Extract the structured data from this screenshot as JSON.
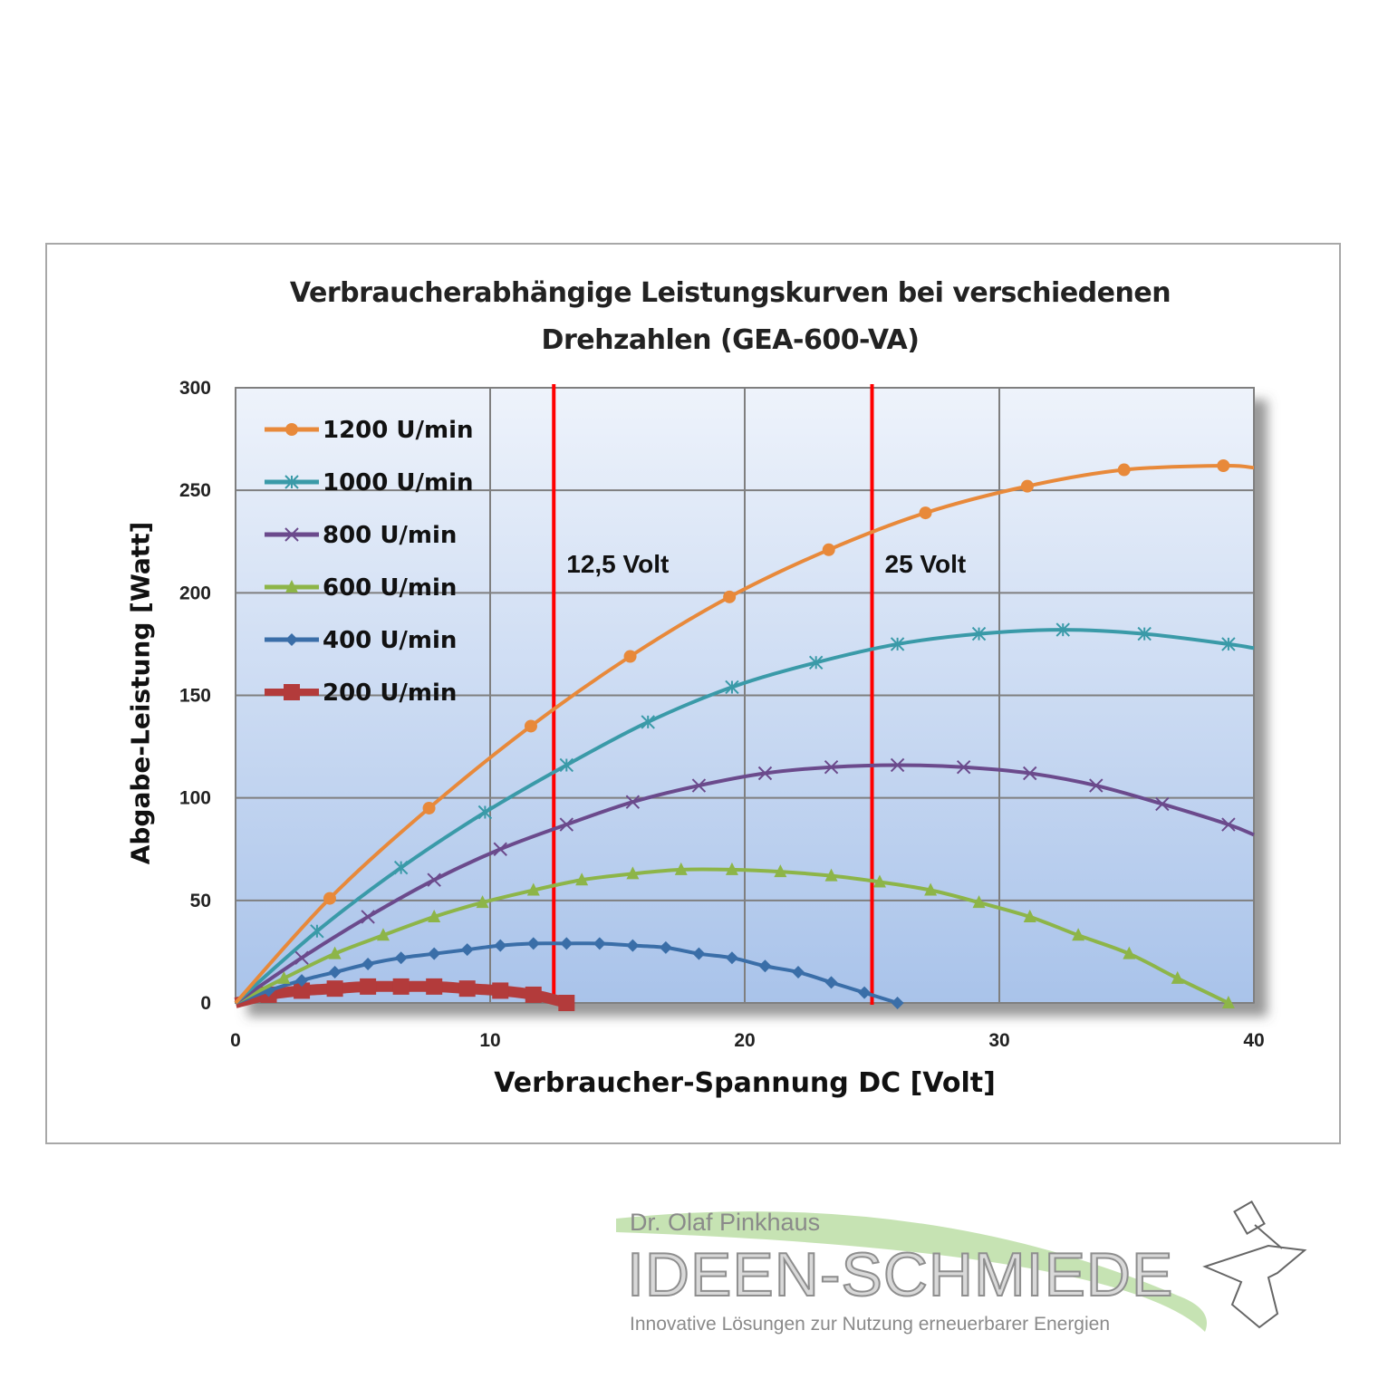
{
  "chart_data": {
    "type": "line",
    "title": "Verbraucherabhängige Leistungskurven bei verschiedenen Drehzahlen (GEA-600-VA)",
    "title_lines": [
      "Verbraucherabhängige Leistungskurven bei verschiedenen",
      "Drehzahlen (GEA-600-VA)"
    ],
    "xlabel": "Verbraucher-Spannung DC [Volt]",
    "ylabel": "Abgabe-Leistung  [Watt]",
    "xlim": [
      0,
      40
    ],
    "ylim": [
      0,
      300
    ],
    "xticks": [
      0,
      10,
      20,
      30,
      40
    ],
    "yticks": [
      0,
      50,
      100,
      150,
      200,
      250,
      300
    ],
    "grid": true,
    "legend_position": "upper-left inside plot",
    "annotations": [
      {
        "type": "vline",
        "x": 12.5,
        "label": "12,5 Volt",
        "color": "#ff0000"
      },
      {
        "type": "vline",
        "x": 25,
        "label": "25 Volt",
        "color": "#ff0000"
      }
    ],
    "series": [
      {
        "name": "1200 U/min",
        "color": "#e8893a",
        "marker": "circle",
        "x": [
          0,
          3.7,
          7.6,
          11.6,
          15.5,
          19.4,
          23.3,
          27.1,
          31.1,
          34.9,
          38.8,
          40
        ],
        "values": [
          0,
          51,
          95,
          135,
          169,
          198,
          221,
          239,
          252,
          260,
          262,
          261
        ]
      },
      {
        "name": "1000 U/min",
        "color": "#3a9aa8",
        "marker": "asterisk",
        "x": [
          0,
          3.2,
          6.5,
          9.8,
          13,
          16.2,
          19.5,
          22.8,
          26,
          29.2,
          32.5,
          35.7,
          39,
          40
        ],
        "values": [
          0,
          35,
          66,
          93,
          116,
          137,
          154,
          166,
          175,
          180,
          182,
          180,
          175,
          173
        ]
      },
      {
        "name": "800 U/min",
        "color": "#6b4a8c",
        "marker": "x",
        "x": [
          0,
          2.6,
          5.2,
          7.8,
          10.4,
          13,
          15.6,
          18.2,
          20.8,
          23.4,
          26,
          28.6,
          31.2,
          33.8,
          36.4,
          39,
          40
        ],
        "values": [
          0,
          22,
          42,
          60,
          75,
          87,
          98,
          106,
          112,
          115,
          116,
          115,
          112,
          106,
          97,
          87,
          82
        ]
      },
      {
        "name": "600 U/min",
        "color": "#8db548",
        "marker": "triangle",
        "x": [
          0,
          1.9,
          3.9,
          5.8,
          7.8,
          9.7,
          11.7,
          13.6,
          15.6,
          17.5,
          19.5,
          21.4,
          23.4,
          25.3,
          27.3,
          29.2,
          31.2,
          33.1,
          35.1,
          37,
          39
        ],
        "values": [
          0,
          12,
          24,
          33,
          42,
          49,
          55,
          60,
          63,
          65,
          65,
          64,
          62,
          59,
          55,
          49,
          42,
          33,
          24,
          12,
          0
        ]
      },
      {
        "name": "400 U/min",
        "color": "#3a6ea8",
        "marker": "diamond",
        "x": [
          0,
          1.3,
          2.6,
          3.9,
          5.2,
          6.5,
          7.8,
          9.1,
          10.4,
          11.7,
          13,
          14.3,
          15.6,
          16.9,
          18.2,
          19.5,
          20.8,
          22.1,
          23.4,
          24.7,
          26
        ],
        "values": [
          0,
          6,
          11,
          15,
          19,
          22,
          24,
          26,
          28,
          29,
          29,
          29,
          28,
          27,
          24,
          22,
          18,
          15,
          10,
          5,
          0
        ]
      },
      {
        "name": "200 U/min",
        "color": "#b33b3b",
        "marker": "square",
        "x": [
          0,
          1.3,
          2.6,
          3.9,
          5.2,
          6.5,
          7.8,
          9.1,
          10.4,
          11.7,
          13
        ],
        "values": [
          0,
          4,
          6,
          7,
          8,
          8,
          8,
          7,
          6,
          4,
          0
        ]
      }
    ]
  },
  "logo": {
    "name": "Dr. Olaf Pinkhaus",
    "brand": "IDEEN-SCHMIEDE",
    "tagline": "Innovative Lösungen zur Nutzung erneuerbarer Energien"
  }
}
